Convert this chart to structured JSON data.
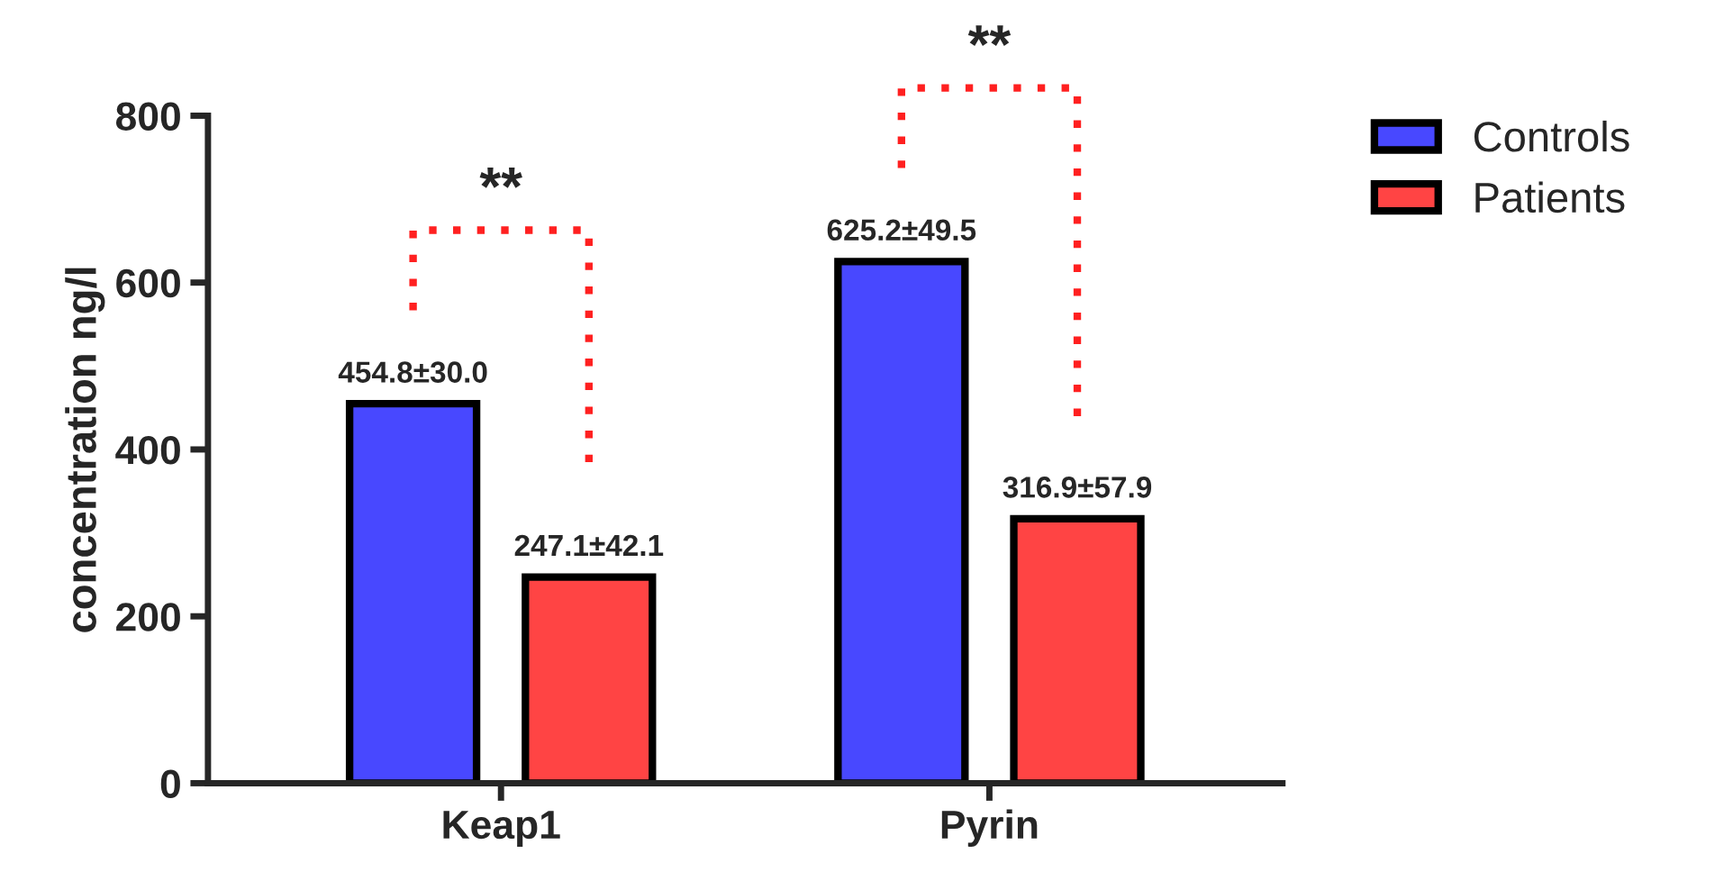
{
  "chart_data": {
    "type": "bar",
    "ylabel": "concentration ng/l",
    "categories": [
      "Keap1",
      "Pyrin"
    ],
    "series": [
      {
        "name": "Controls",
        "color": "#4848ff",
        "values": [
          454.8,
          625.2
        ],
        "value_labels": [
          "454.8±30.0",
          "625.2±49.5"
        ]
      },
      {
        "name": "Patients",
        "color": "#ff4444",
        "values": [
          247.1,
          316.9
        ],
        "value_labels": [
          "247.1±42.1",
          "316.9±57.9"
        ]
      }
    ],
    "ylim": [
      0,
      800
    ],
    "yticks": [
      0,
      200,
      400,
      600,
      800
    ],
    "grid": false,
    "legend": "top right",
    "annotations": [
      "**",
      "**"
    ]
  }
}
